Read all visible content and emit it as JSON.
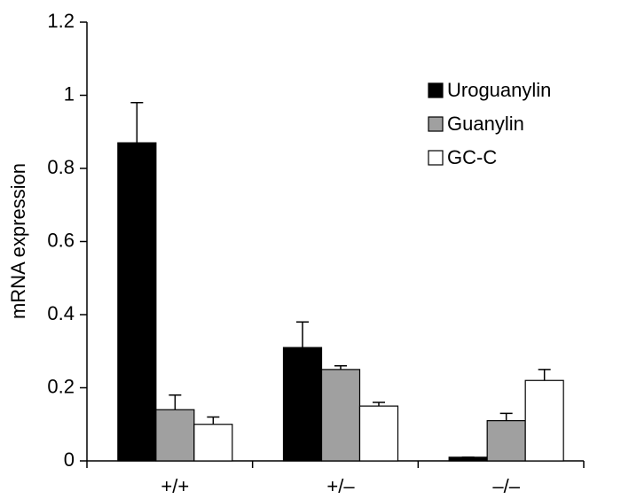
{
  "chart_data": {
    "type": "bar",
    "y_label": "mRNA expression",
    "categories": [
      "+/+",
      "+/–",
      "–/–"
    ],
    "series": [
      {
        "name": "Uroguanylin",
        "color": "#000000",
        "values": [
          0.87,
          0.31,
          0.01
        ],
        "errors": [
          0.11,
          0.07,
          0
        ]
      },
      {
        "name": "Guanylin",
        "color": "#a0a0a0",
        "values": [
          0.14,
          0.25,
          0.11
        ],
        "errors": [
          0.04,
          0.01,
          0.02
        ]
      },
      {
        "name": "GC-C",
        "color": "#ffffff",
        "values": [
          0.1,
          0.15,
          0.22
        ],
        "errors": [
          0.02,
          0.01,
          0.03
        ]
      }
    ],
    "ylim": [
      0,
      1.2
    ],
    "yticks": [
      0,
      0.2,
      0.4,
      0.6,
      0.8,
      1,
      1.2
    ],
    "legend": "upper right",
    "grid": false
  }
}
